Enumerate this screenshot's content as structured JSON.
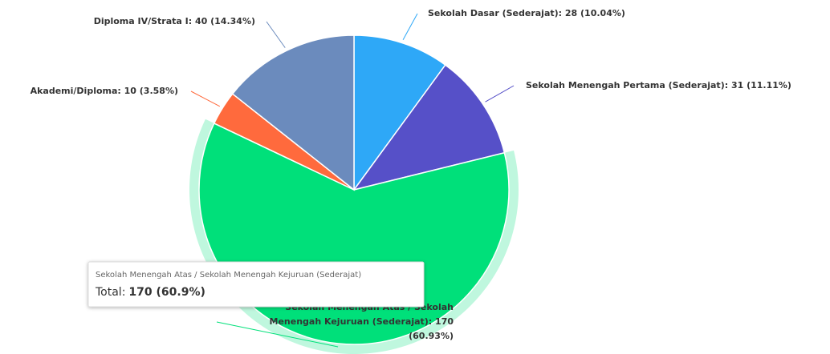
{
  "chart_data": {
    "type": "pie",
    "values": [
      28,
      31,
      170,
      10,
      40
    ],
    "value_labels": [
      "Sekolah Dasar (Sederajat): 28 (10.04%)",
      "Sekolah Menengah Pertama (Sederajat): 31 (11.11%)",
      "Sekolah Menengah Atas / Sekolah Menengah Kejuruan (Sederajat): 170 (60.93%)",
      "Akademi/Diploma: 10 (3.58%)",
      "Diploma IV/Strata I: 40 (14.34%)"
    ],
    "colors": [
      "#2ea8f7",
      "#5650c8",
      "#00e07a",
      "#ff6a3d",
      "#6b8bbd"
    ],
    "tooltip": {
      "title": "Sekolah Menengah Atas / Sekolah Menengah Kejuruan (Sederajat)",
      "label": "Total:",
      "value": "170 (60.9%)"
    }
  }
}
